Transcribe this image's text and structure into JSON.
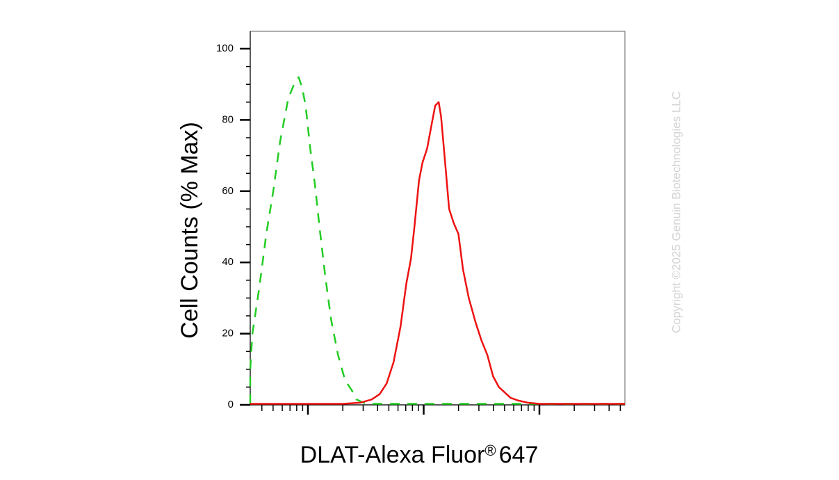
{
  "chart_data": {
    "type": "line",
    "xlabel_main": "DLAT-Alexa Fluor",
    "xlabel_reg": "®",
    "xlabel_num": "647",
    "ylabel": "Cell Counts (% Max)",
    "ylim": [
      0,
      105
    ],
    "y_ticks": [
      "0",
      "20",
      "40",
      "60",
      "80",
      "100"
    ],
    "x_scale": "log",
    "x_tick_labels": [],
    "grid": false,
    "legend": "none",
    "watermark": "Copyright ©2025 Genuin Biotechnologies LLC",
    "series": [
      {
        "style": "dashed",
        "color": "#22cc22",
        "points": [
          [
            -1.5,
            0.3
          ],
          [
            -0.85,
            0.3
          ],
          [
            -0.75,
            0.8
          ],
          [
            -0.7,
            1.5
          ],
          [
            -0.62,
            4
          ],
          [
            -0.55,
            10
          ],
          [
            -0.48,
            20
          ],
          [
            -0.42,
            33
          ],
          [
            -0.36,
            48
          ],
          [
            -0.3,
            60
          ],
          [
            -0.24,
            74
          ],
          [
            -0.17,
            86
          ],
          [
            -0.12,
            90
          ],
          [
            -0.08,
            92
          ],
          [
            -0.05,
            89
          ],
          [
            -0.02,
            84
          ],
          [
            0.02,
            72
          ],
          [
            0.06,
            62
          ],
          [
            0.1,
            50
          ],
          [
            0.15,
            36
          ],
          [
            0.2,
            24
          ],
          [
            0.26,
            14
          ],
          [
            0.32,
            7
          ],
          [
            0.38,
            4
          ],
          [
            0.42,
            1.5
          ],
          [
            0.48,
            0.6
          ],
          [
            0.55,
            0.3
          ],
          [
            3.5,
            0.3
          ]
        ]
      },
      {
        "style": "solid",
        "color": "#ee1111",
        "points": [
          [
            -1.5,
            0.3
          ],
          [
            0.3,
            0.3
          ],
          [
            0.45,
            0.6
          ],
          [
            0.55,
            1.5
          ],
          [
            0.62,
            3
          ],
          [
            0.68,
            6
          ],
          [
            0.74,
            12
          ],
          [
            0.8,
            22
          ],
          [
            0.85,
            34
          ],
          [
            0.89,
            41
          ],
          [
            0.92,
            50
          ],
          [
            0.96,
            63
          ],
          [
            0.99,
            68
          ],
          [
            1.03,
            72
          ],
          [
            1.07,
            79
          ],
          [
            1.1,
            84
          ],
          [
            1.13,
            85
          ],
          [
            1.15,
            81
          ],
          [
            1.18,
            70
          ],
          [
            1.22,
            55
          ],
          [
            1.26,
            51
          ],
          [
            1.3,
            48
          ],
          [
            1.34,
            38
          ],
          [
            1.39,
            30
          ],
          [
            1.45,
            23
          ],
          [
            1.5,
            18
          ],
          [
            1.55,
            14
          ],
          [
            1.6,
            8
          ],
          [
            1.65,
            5
          ],
          [
            1.7,
            3.5
          ],
          [
            1.75,
            2
          ],
          [
            1.82,
            1.2
          ],
          [
            1.9,
            0.6
          ],
          [
            2.0,
            0.3
          ],
          [
            3.5,
            0.3
          ]
        ]
      }
    ]
  }
}
